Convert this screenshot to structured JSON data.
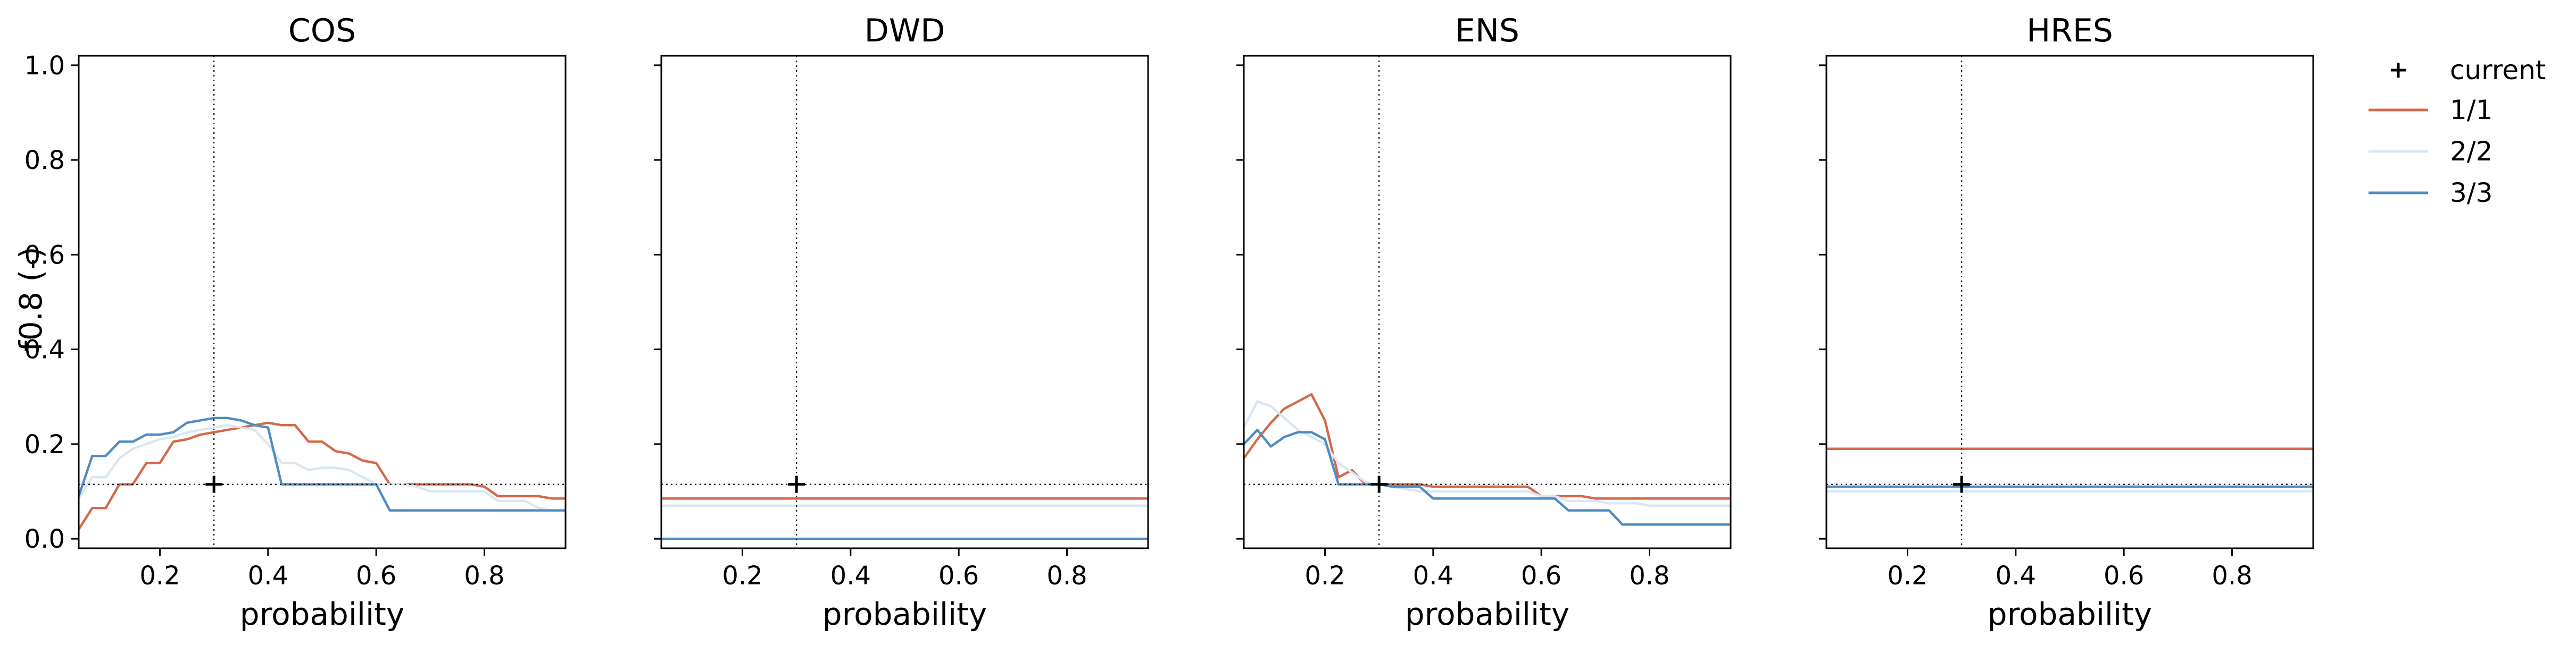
{
  "figure": {
    "ylabel": "f0.8 (-)"
  },
  "colors": {
    "s1": "#d4694a",
    "s2": "#dbe7f3",
    "s3": "#4f8cc2",
    "ref": "#000000"
  },
  "legend": {
    "placement": "right",
    "items": [
      {
        "label": "current",
        "marker": "plus"
      },
      {
        "label": "1/1",
        "color": "#d4694a"
      },
      {
        "label": "2/2",
        "color": "#dbe7f3"
      },
      {
        "label": "3/3",
        "color": "#4f8cc2"
      }
    ]
  },
  "chart_data": [
    {
      "type": "line",
      "title": "COS",
      "xlabel": "probability",
      "ylabel": "f0.8 (-)",
      "xlim": [
        0.05,
        0.95
      ],
      "ylim": [
        -0.02,
        1.02
      ],
      "xticks": [
        "0.2",
        "0.4",
        "0.6",
        "0.8"
      ],
      "yticks": [
        "0.0",
        "0.2",
        "0.4",
        "0.6",
        "0.8",
        "1.0"
      ],
      "current": {
        "x": 0.3,
        "y": 0.115
      },
      "series": [
        {
          "name": "1/1",
          "x": [
            0.05,
            0.075,
            0.1,
            0.125,
            0.15,
            0.175,
            0.2,
            0.225,
            0.25,
            0.275,
            0.3,
            0.325,
            0.35,
            0.375,
            0.4,
            0.425,
            0.45,
            0.475,
            0.5,
            0.525,
            0.55,
            0.575,
            0.6,
            0.625,
            0.65,
            0.675,
            0.7,
            0.725,
            0.75,
            0.775,
            0.8,
            0.825,
            0.85,
            0.875,
            0.9,
            0.925,
            0.95
          ],
          "y": [
            0.02,
            0.065,
            0.065,
            0.115,
            0.115,
            0.16,
            0.16,
            0.205,
            0.21,
            0.22,
            0.225,
            0.23,
            0.235,
            0.24,
            0.245,
            0.24,
            0.24,
            0.205,
            0.205,
            0.185,
            0.18,
            0.165,
            0.16,
            0.115,
            0.115,
            0.115,
            0.115,
            0.115,
            0.115,
            0.115,
            0.11,
            0.09,
            0.09,
            0.09,
            0.09,
            0.085,
            0.085
          ]
        },
        {
          "name": "2/2",
          "x": [
            0.05,
            0.075,
            0.1,
            0.125,
            0.15,
            0.175,
            0.2,
            0.225,
            0.25,
            0.275,
            0.3,
            0.325,
            0.35,
            0.375,
            0.4,
            0.425,
            0.45,
            0.475,
            0.5,
            0.525,
            0.55,
            0.575,
            0.6,
            0.625,
            0.65,
            0.675,
            0.7,
            0.725,
            0.75,
            0.775,
            0.8,
            0.825,
            0.85,
            0.875,
            0.9,
            0.925,
            0.95
          ],
          "y": [
            0.085,
            0.13,
            0.13,
            0.17,
            0.19,
            0.2,
            0.21,
            0.215,
            0.225,
            0.23,
            0.235,
            0.24,
            0.235,
            0.23,
            0.2,
            0.16,
            0.16,
            0.145,
            0.15,
            0.15,
            0.145,
            0.13,
            0.115,
            0.115,
            0.115,
            0.11,
            0.1,
            0.1,
            0.1,
            0.1,
            0.1,
            0.08,
            0.08,
            0.08,
            0.065,
            0.06,
            0.06
          ]
        },
        {
          "name": "3/3",
          "x": [
            0.05,
            0.075,
            0.1,
            0.125,
            0.15,
            0.175,
            0.2,
            0.225,
            0.25,
            0.275,
            0.3,
            0.325,
            0.35,
            0.375,
            0.4,
            0.425,
            0.45,
            0.475,
            0.5,
            0.525,
            0.55,
            0.575,
            0.6,
            0.625,
            0.65,
            0.675,
            0.7,
            0.725,
            0.75,
            0.775,
            0.8,
            0.825,
            0.85,
            0.875,
            0.9,
            0.925,
            0.95
          ],
          "y": [
            0.09,
            0.175,
            0.175,
            0.205,
            0.205,
            0.22,
            0.22,
            0.225,
            0.245,
            0.25,
            0.255,
            0.255,
            0.25,
            0.24,
            0.235,
            0.115,
            0.115,
            0.115,
            0.115,
            0.115,
            0.115,
            0.115,
            0.115,
            0.06,
            0.06,
            0.06,
            0.06,
            0.06,
            0.06,
            0.06,
            0.06,
            0.06,
            0.06,
            0.06,
            0.06,
            0.06,
            0.06
          ]
        }
      ]
    },
    {
      "type": "line",
      "title": "DWD",
      "xlabel": "probability",
      "xlim": [
        0.05,
        0.95
      ],
      "ylim": [
        -0.02,
        1.02
      ],
      "xticks": [
        "0.2",
        "0.4",
        "0.6",
        "0.8"
      ],
      "yticks": [],
      "current": {
        "x": 0.3,
        "y": 0.115
      },
      "series": [
        {
          "name": "1/1",
          "x": [
            0.05,
            0.95
          ],
          "y": [
            0.085,
            0.085
          ]
        },
        {
          "name": "2/2",
          "x": [
            0.05,
            0.95
          ],
          "y": [
            0.07,
            0.07
          ]
        },
        {
          "name": "3/3",
          "x": [
            0.05,
            0.95
          ],
          "y": [
            0.0,
            0.0
          ]
        }
      ]
    },
    {
      "type": "line",
      "title": "ENS",
      "xlabel": "probability",
      "xlim": [
        0.05,
        0.95
      ],
      "ylim": [
        -0.02,
        1.02
      ],
      "xticks": [
        "0.2",
        "0.4",
        "0.6",
        "0.8"
      ],
      "yticks": [],
      "current": {
        "x": 0.3,
        "y": 0.115
      },
      "series": [
        {
          "name": "1/1",
          "x": [
            0.05,
            0.075,
            0.1,
            0.125,
            0.15,
            0.175,
            0.2,
            0.225,
            0.25,
            0.275,
            0.3,
            0.325,
            0.35,
            0.375,
            0.4,
            0.425,
            0.45,
            0.475,
            0.5,
            0.525,
            0.55,
            0.575,
            0.6,
            0.625,
            0.65,
            0.675,
            0.7,
            0.725,
            0.75,
            0.775,
            0.8,
            0.825,
            0.85,
            0.875,
            0.9,
            0.925,
            0.95
          ],
          "y": [
            0.17,
            0.21,
            0.245,
            0.275,
            0.29,
            0.305,
            0.25,
            0.13,
            0.145,
            0.115,
            0.115,
            0.115,
            0.115,
            0.115,
            0.11,
            0.11,
            0.11,
            0.11,
            0.11,
            0.11,
            0.11,
            0.11,
            0.09,
            0.09,
            0.09,
            0.09,
            0.085,
            0.085,
            0.085,
            0.085,
            0.085,
            0.085,
            0.085,
            0.085,
            0.085,
            0.085,
            0.085
          ]
        },
        {
          "name": "2/2",
          "x": [
            0.05,
            0.075,
            0.1,
            0.125,
            0.15,
            0.175,
            0.2,
            0.225,
            0.25,
            0.275,
            0.3,
            0.325,
            0.35,
            0.375,
            0.4,
            0.425,
            0.45,
            0.475,
            0.5,
            0.525,
            0.55,
            0.575,
            0.6,
            0.625,
            0.65,
            0.675,
            0.7,
            0.725,
            0.75,
            0.775,
            0.8,
            0.825,
            0.85,
            0.875,
            0.9,
            0.925,
            0.95
          ],
          "y": [
            0.235,
            0.29,
            0.28,
            0.255,
            0.23,
            0.215,
            0.2,
            0.16,
            0.14,
            0.12,
            0.115,
            0.11,
            0.105,
            0.1,
            0.1,
            0.1,
            0.1,
            0.1,
            0.1,
            0.1,
            0.1,
            0.1,
            0.09,
            0.09,
            0.08,
            0.08,
            0.08,
            0.075,
            0.075,
            0.075,
            0.07,
            0.07,
            0.07,
            0.07,
            0.07,
            0.07,
            0.07
          ]
        },
        {
          "name": "3/3",
          "x": [
            0.05,
            0.075,
            0.1,
            0.125,
            0.15,
            0.175,
            0.2,
            0.225,
            0.25,
            0.275,
            0.3,
            0.325,
            0.35,
            0.375,
            0.4,
            0.425,
            0.45,
            0.475,
            0.5,
            0.525,
            0.55,
            0.575,
            0.6,
            0.625,
            0.65,
            0.675,
            0.7,
            0.725,
            0.75,
            0.775,
            0.8,
            0.825,
            0.85,
            0.875,
            0.9,
            0.925,
            0.95
          ],
          "y": [
            0.2,
            0.23,
            0.195,
            0.215,
            0.225,
            0.225,
            0.21,
            0.115,
            0.115,
            0.115,
            0.115,
            0.11,
            0.11,
            0.11,
            0.085,
            0.085,
            0.085,
            0.085,
            0.085,
            0.085,
            0.085,
            0.085,
            0.085,
            0.085,
            0.06,
            0.06,
            0.06,
            0.06,
            0.03,
            0.03,
            0.03,
            0.03,
            0.03,
            0.03,
            0.03,
            0.03,
            0.03
          ]
        }
      ]
    },
    {
      "type": "line",
      "title": "HRES",
      "xlabel": "probability",
      "xlim": [
        0.05,
        0.95
      ],
      "ylim": [
        -0.02,
        1.02
      ],
      "xticks": [
        "0.2",
        "0.4",
        "0.6",
        "0.8"
      ],
      "yticks": [],
      "current": {
        "x": 0.3,
        "y": 0.115
      },
      "series": [
        {
          "name": "1/1",
          "x": [
            0.05,
            0.95
          ],
          "y": [
            0.19,
            0.19
          ]
        },
        {
          "name": "2/2",
          "x": [
            0.05,
            0.95
          ],
          "y": [
            0.1,
            0.1
          ]
        },
        {
          "name": "3/3",
          "x": [
            0.05,
            0.95
          ],
          "y": [
            0.11,
            0.11
          ]
        }
      ]
    }
  ]
}
